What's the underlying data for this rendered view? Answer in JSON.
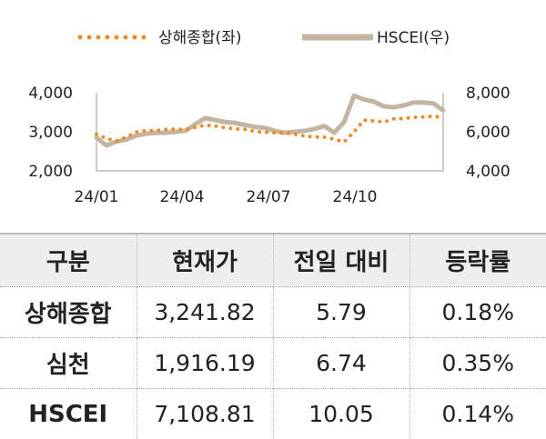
{
  "chart_data": {
    "type": "line",
    "title": "",
    "legend_position": "top",
    "grid": false,
    "x_ticks": [
      "24/01",
      "24/04",
      "24/07",
      "24/10"
    ],
    "y_left": {
      "lim": [
        2000,
        4000
      ],
      "ticks": [
        "2,000",
        "3,000",
        "4,000"
      ]
    },
    "y_right": {
      "lim": [
        4000,
        8000
      ],
      "ticks": [
        "4,000",
        "6,000",
        "8,000"
      ]
    },
    "series": [
      {
        "name": "상해종합(좌)",
        "axis": "left",
        "style": "dotted",
        "color": "#f08a24",
        "x": [
          "24/01",
          "24/01",
          "24/01",
          "24/02",
          "24/02",
          "24/02",
          "24/03",
          "24/03",
          "24/03",
          "24/04",
          "24/04",
          "24/04",
          "24/05",
          "24/05",
          "24/05",
          "24/06",
          "24/06",
          "24/06",
          "24/07",
          "24/07",
          "24/07",
          "24/08",
          "24/08",
          "24/08",
          "24/09",
          "24/09",
          "24/09",
          "24/10",
          "24/10",
          "24/10",
          "24/11",
          "24/11",
          "24/11",
          "24/12",
          "24/12",
          "24/12"
        ],
        "values": [
          2940,
          2830,
          2760,
          2860,
          2990,
          3030,
          3030,
          3060,
          3070,
          3050,
          3120,
          3170,
          3150,
          3100,
          3080,
          3060,
          3010,
          2990,
          2980,
          2970,
          2940,
          2890,
          2870,
          2860,
          2810,
          2740,
          3000,
          3300,
          3280,
          3250,
          3330,
          3340,
          3370,
          3380,
          3400,
          3360
        ]
      },
      {
        "name": "HSCEI(우)",
        "axis": "right",
        "style": "solid",
        "color": "#c3b5a1",
        "x": [
          "24/01",
          "24/01",
          "24/01",
          "24/02",
          "24/02",
          "24/02",
          "24/03",
          "24/03",
          "24/03",
          "24/04",
          "24/04",
          "24/04",
          "24/05",
          "24/05",
          "24/05",
          "24/06",
          "24/06",
          "24/06",
          "24/07",
          "24/07",
          "24/07",
          "24/08",
          "24/08",
          "24/08",
          "24/09",
          "24/09",
          "24/09",
          "24/10",
          "24/10",
          "24/10",
          "24/11",
          "24/11",
          "24/11",
          "24/12",
          "24/12",
          "24/12"
        ],
        "values": [
          5700,
          5300,
          5500,
          5600,
          5800,
          5900,
          5950,
          5950,
          6000,
          6050,
          6400,
          6700,
          6600,
          6500,
          6450,
          6350,
          6250,
          6200,
          6050,
          5950,
          6000,
          6050,
          6150,
          6300,
          5950,
          6500,
          7850,
          7650,
          7550,
          7300,
          7250,
          7350,
          7500,
          7500,
          7450,
          7100
        ]
      }
    ]
  },
  "table": {
    "headers": [
      "구분",
      "현재가",
      "전일 대비",
      "등락률"
    ],
    "rows": [
      [
        "상해종합",
        "3,241.82",
        "5.79",
        "0.18%"
      ],
      [
        "심천",
        "1,916.19",
        "6.74",
        "0.35%"
      ],
      [
        "HSCEI",
        "7,108.81",
        "10.05",
        "0.14%"
      ]
    ]
  }
}
